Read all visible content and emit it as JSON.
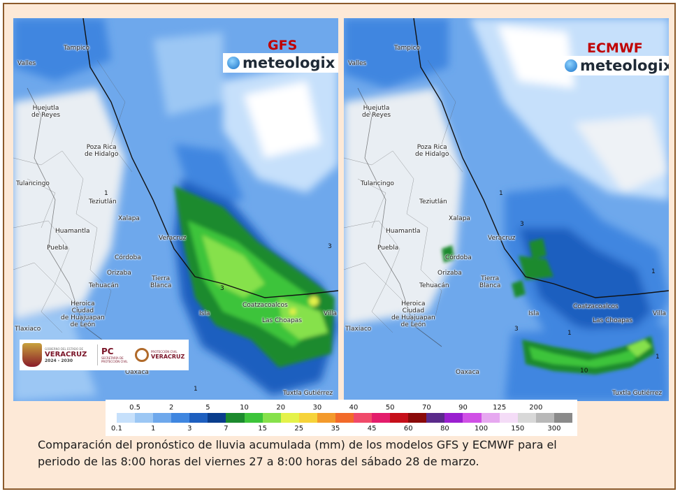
{
  "maps": {
    "gfs": {
      "model_label": "GFS",
      "brand": "meteologix",
      "cities": [
        {
          "name": "Tampico"
        },
        {
          "name": "Valles"
        },
        {
          "name": "Huejutla\nde Reyes"
        },
        {
          "name": "Poza Rica\nde Hidalgo"
        },
        {
          "name": "Tulancingo"
        },
        {
          "name": "Teziutlán"
        },
        {
          "name": "Xalapa"
        },
        {
          "name": "Huamantla"
        },
        {
          "name": "Puebla"
        },
        {
          "name": "Veracruz"
        },
        {
          "name": "Córdoba"
        },
        {
          "name": "Orizaba"
        },
        {
          "name": "Tehuacán"
        },
        {
          "name": "Tierra\nBlanca"
        },
        {
          "name": "Heroica\nCiudad\nde Huajuapan\nde León"
        },
        {
          "name": "Tlaxiaco"
        },
        {
          "name": "Isla"
        },
        {
          "name": "Coatzacoalcos"
        },
        {
          "name": "Las Choapas"
        },
        {
          "name": "Villa"
        },
        {
          "name": "Oaxaca"
        },
        {
          "name": "Tuxtla Gutiérrez"
        }
      ],
      "contours": [
        "3",
        "3",
        "1",
        "1"
      ]
    },
    "ecmwf": {
      "model_label": "ECMWF",
      "brand": "meteologix",
      "cities": [
        {
          "name": "Tampico"
        },
        {
          "name": "Valles"
        },
        {
          "name": "Huejutla\nde Reyes"
        },
        {
          "name": "Poza Rica\nde Hidalgo"
        },
        {
          "name": "Tulancingo"
        },
        {
          "name": "Teziutlán"
        },
        {
          "name": "Xalapa"
        },
        {
          "name": "Huamantla"
        },
        {
          "name": "Puebla"
        },
        {
          "name": "Veracruz"
        },
        {
          "name": "Córdoba"
        },
        {
          "name": "Orizaba"
        },
        {
          "name": "Tehuacán"
        },
        {
          "name": "Tierra\nBlanca"
        },
        {
          "name": "Heroica\nCiudad\nde Huajuapan\nde León"
        },
        {
          "name": "Tlaxiaco"
        },
        {
          "name": "Isla"
        },
        {
          "name": "Coatzacoalcos"
        },
        {
          "name": "Las Choapas"
        },
        {
          "name": "Villa"
        },
        {
          "name": "Oaxaca"
        },
        {
          "name": "Tuxtla Gutiérrez"
        }
      ],
      "contours": [
        "1",
        "3",
        "1",
        "3",
        "10",
        "1",
        "1"
      ]
    }
  },
  "government_logos": {
    "gov_small": "GOBIERNO DEL ESTADO DE",
    "gov_big": "VERACRUZ",
    "gov_years": "2024 - 2030",
    "pc_big": "PC",
    "pc_small": "SECRETARÍA DE PROTECCIÓN CIVIL",
    "pc2_small": "PROTECCIÓN CIVIL",
    "pc2_big": "VERACRUZ"
  },
  "legend": {
    "title": "",
    "top_labels": [
      "0.5",
      "2",
      "5",
      "10",
      "20",
      "30",
      "40",
      "50",
      "70",
      "90",
      "125",
      "200"
    ],
    "bottom_labels": [
      "0.1",
      "1",
      "3",
      "7",
      "15",
      "25",
      "35",
      "45",
      "60",
      "80",
      "100",
      "150",
      "300"
    ],
    "colors": [
      "#c6e0fb",
      "#9cc7f4",
      "#6ea8ec",
      "#3f86e0",
      "#1e5fbf",
      "#0a3d8c",
      "#1c8a2e",
      "#3cc43a",
      "#86e14b",
      "#e4f24a",
      "#f6d33a",
      "#f39a2c",
      "#f26a2a",
      "#f04a6a",
      "#e31c6b",
      "#c60f1a",
      "#8a0a0a",
      "#5a2a8a",
      "#9a1fd0",
      "#d050e6",
      "#e6a8f0",
      "#f4dcf7",
      "#d8d8d8",
      "#b8b8b8",
      "#8a8a8a"
    ]
  },
  "caption": {
    "line1": "Comparación del pronóstico de lluvia acumulada (mm) de los modelos GFS y ECMWF para el",
    "line2": "periodo de las 8:00 horas del viernes 27 a 8:00 horas del sábado 28 de marzo."
  }
}
